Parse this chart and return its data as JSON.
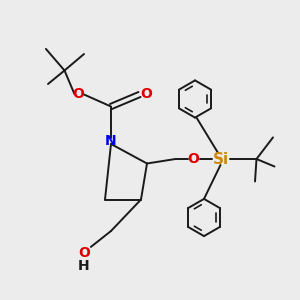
{
  "bg_color": "#ececec",
  "bond_color": "#1a1a1a",
  "N_color": "#0000ee",
  "O_color": "#dd0000",
  "Si_color": "#cc8800",
  "lw": 1.4,
  "ring_lw": 1.4,
  "figsize": [
    3.0,
    3.0
  ],
  "dpi": 100,
  "xlim": [
    0,
    10
  ],
  "ylim": [
    0,
    10
  ]
}
